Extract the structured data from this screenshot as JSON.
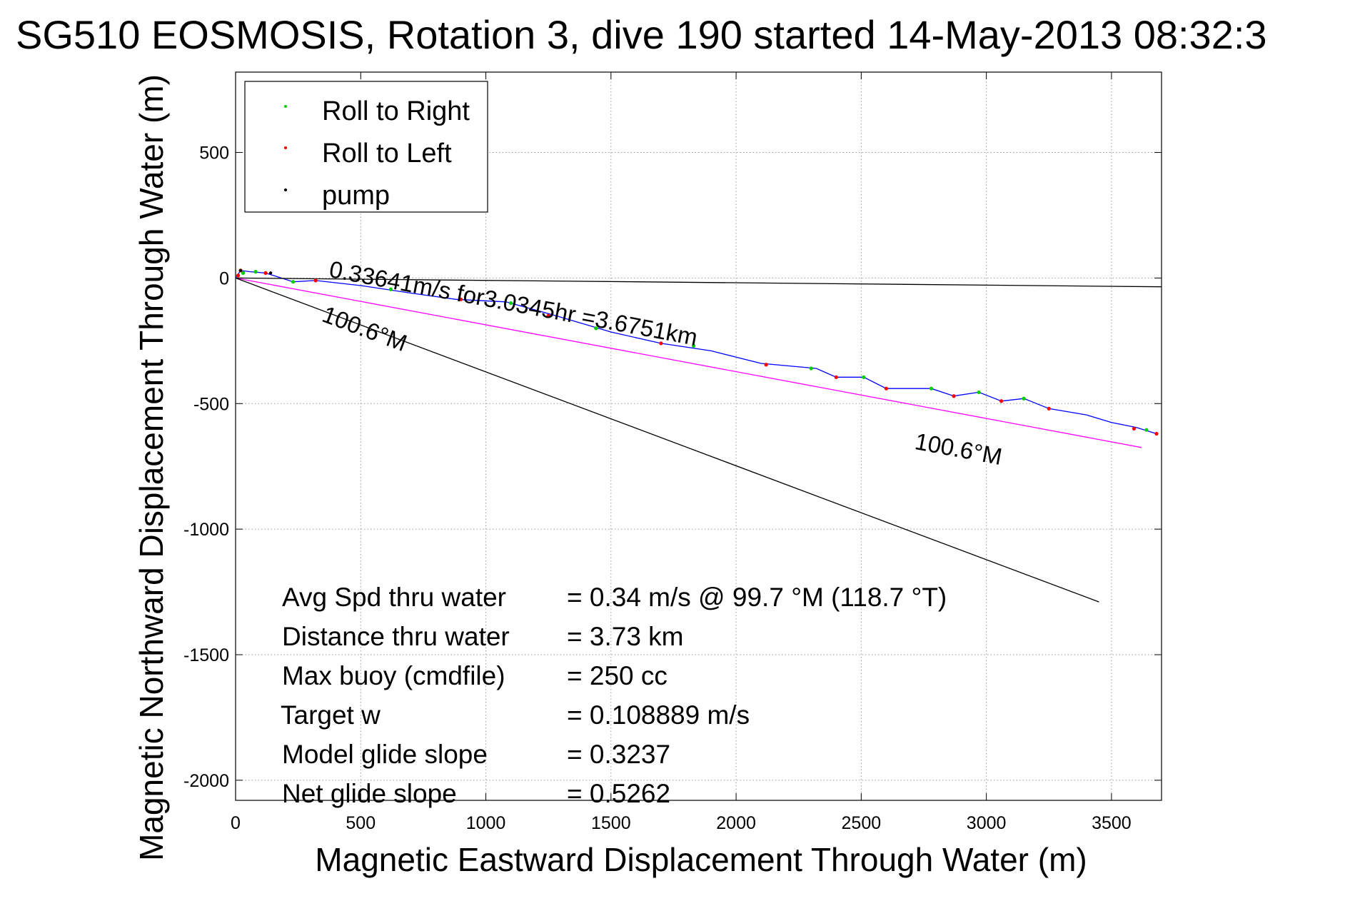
{
  "chart_data": {
    "type": "line",
    "title": "SG510 EOSMOSIS, Rotation 3, dive 190 started 14-May-2013 08:32:3",
    "xlabel": "Magnetic Eastward Displacement Through Water (m)",
    "ylabel": "Magnetic Northward Displacement Through Water (m)",
    "xlim": [
      0,
      3700
    ],
    "ylim": [
      -2080,
      820
    ],
    "xticks": [
      0,
      500,
      1000,
      1500,
      2000,
      2500,
      3000,
      3500
    ],
    "yticks": [
      500,
      0,
      -500,
      -1000,
      -1500,
      -2000
    ],
    "grid": true,
    "legend_position": "top-left",
    "legend": [
      {
        "label": "Roll to Right",
        "color": "#00cc00"
      },
      {
        "label": "Roll to Left",
        "color": "#ff0000"
      },
      {
        "label": "pump",
        "color": "#000000"
      }
    ],
    "series": [
      {
        "color": "#0000ff",
        "x": [
          0,
          20,
          60,
          120,
          230,
          320,
          500,
          700,
          880,
          1080,
          1280,
          1500,
          1700,
          1900,
          2100,
          2320,
          2400,
          2510,
          2600,
          2780,
          2870,
          2970,
          3060,
          3150,
          3250,
          3400,
          3500,
          3600,
          3680
        ],
        "y": [
          0,
          30,
          25,
          20,
          -15,
          -10,
          -30,
          -60,
          -85,
          -95,
          -150,
          -215,
          -260,
          -290,
          -340,
          -360,
          -395,
          -395,
          -440,
          -440,
          -470,
          -455,
          -490,
          -480,
          -520,
          -545,
          -575,
          -595,
          -620
        ]
      },
      {
        "name": "0.33641m/s for3.0345hr =3.6751km",
        "color": "#ff00ff",
        "x": [
          0,
          3620
        ],
        "y": [
          0,
          -675
        ]
      },
      {
        "color": "#000000",
        "x": [
          0,
          3700
        ],
        "y": [
          0,
          -35
        ]
      },
      {
        "color": "#000000",
        "x": [
          0,
          3450
        ],
        "y": [
          0,
          -1290
        ]
      }
    ],
    "markers": {
      "roll_right_x": [
        30,
        80,
        230,
        620,
        1100,
        1440,
        1830,
        2300,
        2510,
        2780,
        2970,
        3150,
        3640
      ],
      "roll_right_y": [
        20,
        25,
        -15,
        -45,
        -100,
        -200,
        -270,
        -360,
        -395,
        -440,
        -455,
        -480,
        -605
      ],
      "roll_left_x": [
        10,
        20,
        120,
        320,
        900,
        1250,
        1700,
        2120,
        2400,
        2600,
        2870,
        3060,
        3250,
        3590,
        3680
      ],
      "roll_left_y": [
        10,
        30,
        20,
        -10,
        -85,
        -150,
        -260,
        -345,
        -395,
        -440,
        -470,
        -490,
        -520,
        -600,
        -620
      ],
      "pump_x": [
        20,
        140
      ],
      "pump_y": [
        30,
        20
      ]
    },
    "annotations": [
      {
        "text": "0.33641m/s for3.0345hr =3.6751km",
        "x": 370,
        "y": 5
      },
      {
        "text": "100.6°M",
        "x": 340,
        "y": -170
      },
      {
        "text": "100.6°M",
        "x": 2710,
        "y": -680
      }
    ],
    "stats": [
      {
        "label": "Avg Spd thru water",
        "value": "=  0.34 m/s @  99.7 °M (118.7 °T)"
      },
      {
        "label": "Distance thru water",
        "value": "=  3.73 km"
      },
      {
        "label": "Max buoy (cmdfile)",
        "value": "= 250 cc"
      },
      {
        "label": "Target w",
        "value": "= 0.108889 m/s"
      },
      {
        "label": "Model glide slope",
        "value": "= 0.3237"
      },
      {
        "label": "Net glide slope",
        "value": "= 0.5262"
      }
    ]
  }
}
